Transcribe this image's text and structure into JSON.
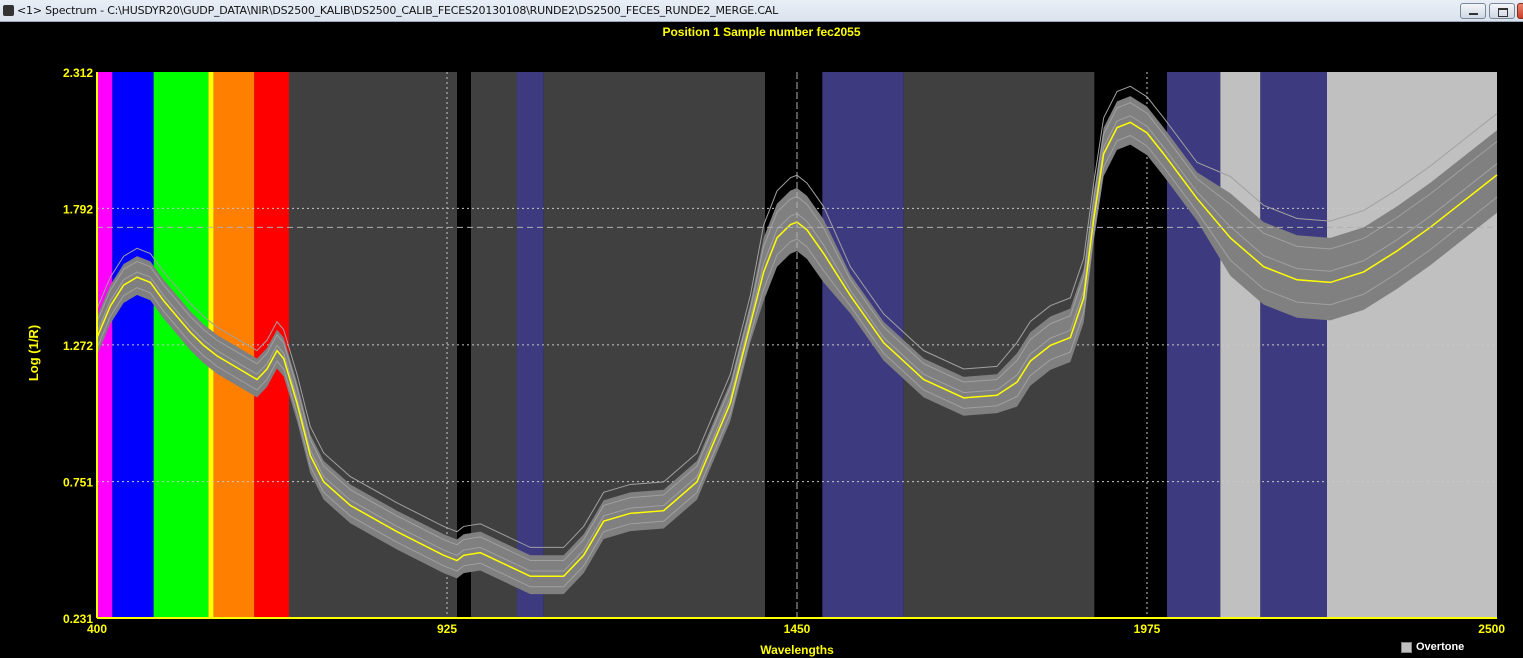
{
  "window": {
    "title": "<1> Spectrum - C:\\HUSDYR20\\GUDP_DATA\\NIR\\DS2500_KALIB\\DS2500_CALIB_FECES20130108\\RUNDE2\\DS2500_FECES_RUNDE2_MERGE.CAL"
  },
  "header": {
    "subtitle": "Position 1  Sample number fec2055"
  },
  "controls": {
    "overtone_label": "Overtone",
    "overtone_checked": false
  },
  "chart_data": {
    "type": "line",
    "xlabel": "Wavelengths",
    "ylabel": "Log (1/R)",
    "xlim": [
      400,
      2500
    ],
    "ylim": [
      0.231,
      2.312
    ],
    "x_ticks": [
      "400",
      "925",
      "1450",
      "1975",
      "2500"
    ],
    "y_ticks": [
      "0.231",
      "0.751",
      "1.272",
      "1.792",
      "2.312"
    ],
    "grid": true,
    "colors": {
      "background": "#000000",
      "axis_text": "#ffff00",
      "mean_line": "#ffff00",
      "spectra_band": "#808080",
      "spectra_lines": "#a0a0a0",
      "crosshair": "#b0b0b0"
    },
    "cursor": {
      "x": 1450,
      "y": 1.72
    },
    "regions": [
      {
        "x0": 400,
        "x1": 423,
        "color": "#ff00ff"
      },
      {
        "x0": 423,
        "x1": 485,
        "color": "#0000ff"
      },
      {
        "x0": 485,
        "x1": 567,
        "color": "#00ff00"
      },
      {
        "x0": 567,
        "x1": 575,
        "color": "#ffff00"
      },
      {
        "x0": 575,
        "x1": 636,
        "color": "#ff8000"
      },
      {
        "x0": 636,
        "x1": 688,
        "color": "#ff0000"
      },
      {
        "x0": 688,
        "x1": 940,
        "color": "#404040"
      },
      {
        "x0": 961,
        "x1": 1030,
        "color": "#404040"
      },
      {
        "x0": 1030,
        "x1": 1070,
        "color": "#3e3a80"
      },
      {
        "x0": 1070,
        "x1": 1402,
        "color": "#404040"
      },
      {
        "x0": 1488,
        "x1": 1610,
        "color": "#3e3a80"
      },
      {
        "x0": 1610,
        "x1": 1896,
        "color": "#404040"
      },
      {
        "x0": 2005,
        "x1": 2085,
        "color": "#3e3a80"
      },
      {
        "x0": 2085,
        "x1": 2145,
        "color": "#c0c0c0"
      },
      {
        "x0": 2145,
        "x1": 2245,
        "color": "#3e3a80"
      },
      {
        "x0": 2245,
        "x1": 2500,
        "color": "#c0c0c0"
      }
    ],
    "series": [
      {
        "role": "mean",
        "x": [
          400,
          420,
          440,
          460,
          480,
          500,
          520,
          540,
          560,
          580,
          600,
          620,
          640,
          655,
          670,
          680,
          700,
          720,
          740,
          780,
          850,
          920,
          940,
          950,
          975,
          1000,
          1050,
          1100,
          1130,
          1160,
          1200,
          1250,
          1300,
          1350,
          1380,
          1400,
          1420,
          1440,
          1450,
          1465,
          1490,
          1530,
          1580,
          1640,
          1700,
          1750,
          1780,
          1800,
          1830,
          1860,
          1880,
          1895,
          1910,
          1930,
          1950,
          1975,
          2000,
          2050,
          2100,
          2150,
          2200,
          2250,
          2300,
          2350,
          2400,
          2450,
          2500
        ],
        "y": [
          1.3,
          1.42,
          1.5,
          1.53,
          1.51,
          1.44,
          1.38,
          1.32,
          1.27,
          1.23,
          1.2,
          1.17,
          1.14,
          1.18,
          1.25,
          1.22,
          1.05,
          0.85,
          0.75,
          0.66,
          0.56,
          0.47,
          0.45,
          0.47,
          0.48,
          0.45,
          0.39,
          0.39,
          0.47,
          0.6,
          0.63,
          0.64,
          0.75,
          1.05,
          1.35,
          1.55,
          1.68,
          1.73,
          1.74,
          1.71,
          1.62,
          1.46,
          1.28,
          1.14,
          1.07,
          1.08,
          1.13,
          1.21,
          1.27,
          1.3,
          1.45,
          1.75,
          2.0,
          2.1,
          2.12,
          2.08,
          2.0,
          1.83,
          1.68,
          1.57,
          1.52,
          1.51,
          1.55,
          1.63,
          1.72,
          1.82,
          1.92
        ]
      }
    ]
  }
}
